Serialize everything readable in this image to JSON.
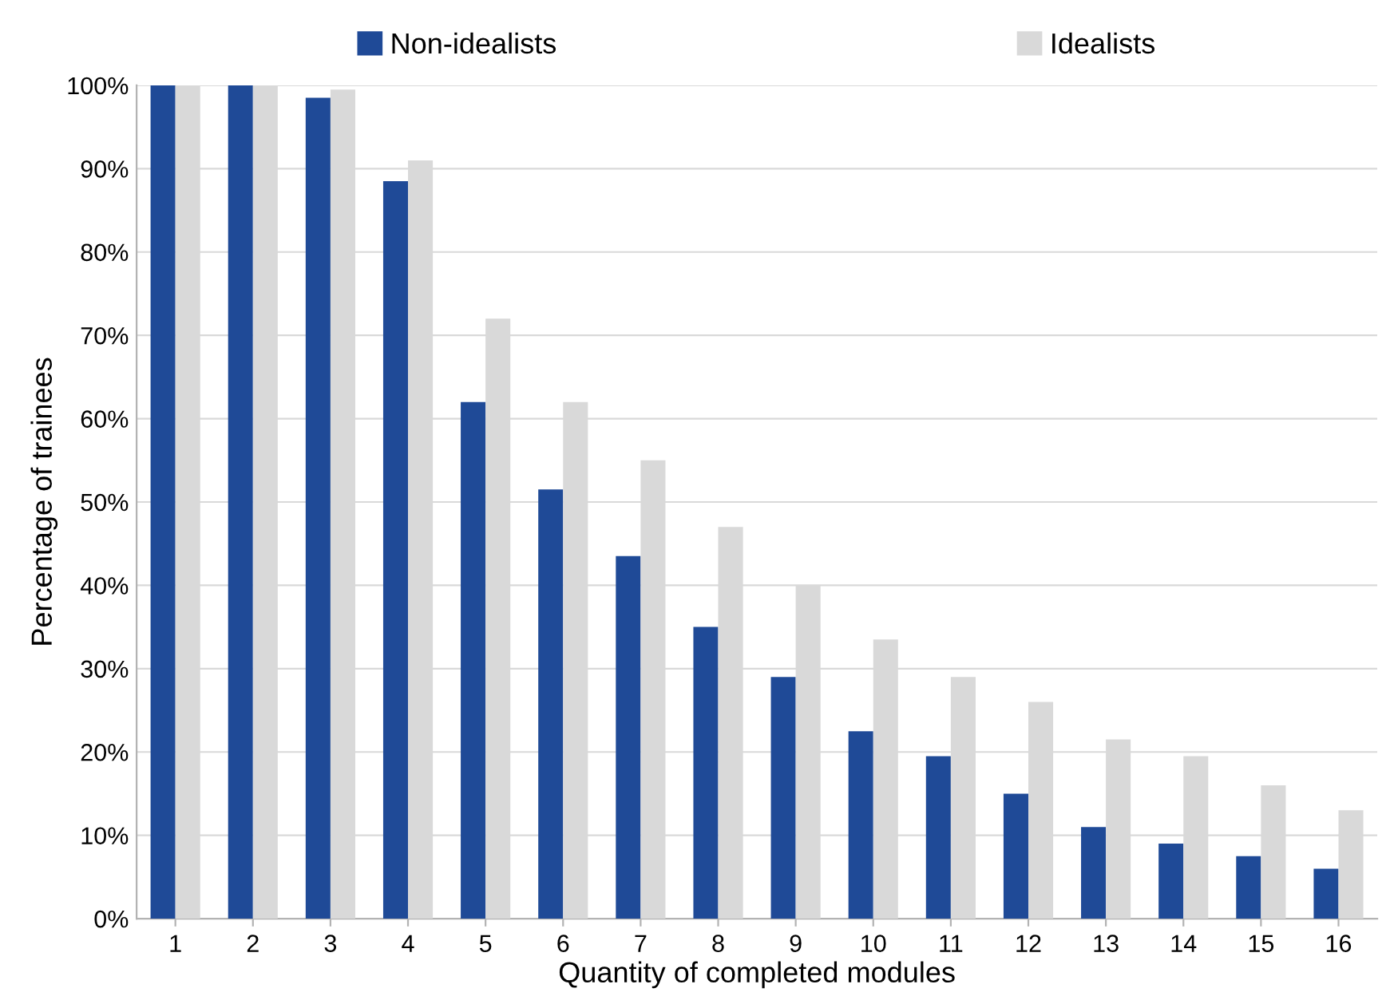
{
  "chart_data": {
    "type": "bar",
    "xlabel": "Quantity of completed modules",
    "ylabel": "Percentage of trainees",
    "categories": [
      "1",
      "2",
      "3",
      "4",
      "5",
      "6",
      "7",
      "8",
      "9",
      "10",
      "11",
      "12",
      "13",
      "14",
      "15",
      "16"
    ],
    "series": [
      {
        "name": "Non-idealists",
        "color": "#1f4a97",
        "values": [
          100,
          100,
          98.5,
          88.5,
          62,
          51.5,
          43.5,
          35,
          29,
          22.5,
          19.5,
          15,
          11,
          9,
          7.5,
          6
        ]
      },
      {
        "name": "Idealists",
        "color": "#d9d9d9",
        "values": [
          100,
          100,
          99.5,
          91,
          72,
          62,
          55,
          47,
          40,
          33.5,
          29,
          26,
          21.5,
          19.5,
          16,
          13
        ]
      }
    ],
    "ylim": [
      0,
      100
    ],
    "yticks": [
      {
        "value": 0,
        "label": "0%"
      },
      {
        "value": 10,
        "label": "10%"
      },
      {
        "value": 20,
        "label": "20%"
      },
      {
        "value": 30,
        "label": "30%"
      },
      {
        "value": 40,
        "label": "40%"
      },
      {
        "value": 50,
        "label": "50%"
      },
      {
        "value": 60,
        "label": "60%"
      },
      {
        "value": 70,
        "label": "70%"
      },
      {
        "value": 80,
        "label": "80%"
      },
      {
        "value": 90,
        "label": "90%"
      },
      {
        "value": 100,
        "label": "100%"
      }
    ],
    "grid": "y",
    "legend": "top"
  }
}
